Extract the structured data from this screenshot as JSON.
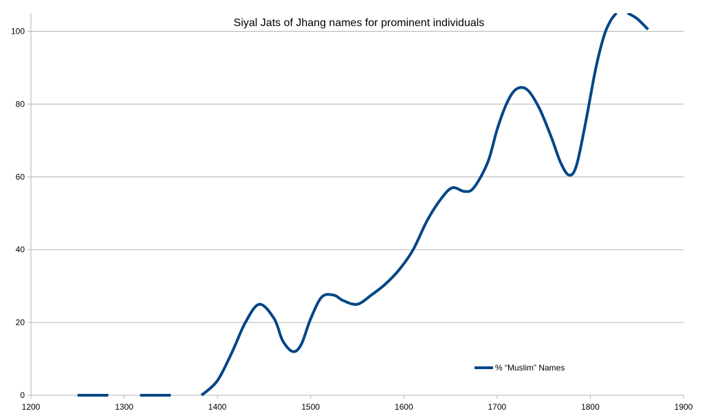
{
  "chart_data": {
    "type": "line",
    "title": "Siyal Jats of Jhang names for prominent individuals",
    "xlabel": "",
    "ylabel": "",
    "xlim": [
      1200,
      1900
    ],
    "ylim": [
      0,
      105
    ],
    "x_ticks": [
      1200,
      1300,
      1400,
      1500,
      1600,
      1700,
      1800,
      1900
    ],
    "y_ticks": [
      0,
      20,
      40,
      60,
      80,
      100
    ],
    "grid": "horizontal",
    "legend_position": "bottom-right",
    "series": [
      {
        "name": "% “Muslim” Names",
        "color": "#004586",
        "segments": [
          {
            "x": [
              1250,
              1283
            ],
            "y": [
              0,
              0
            ]
          },
          {
            "x": [
              1317,
              1350
            ],
            "y": [
              0,
              0
            ]
          },
          {
            "x": [
              1383,
              1400,
              1416,
              1430,
              1445,
              1461,
              1470,
              1481,
              1490,
              1500,
              1512,
              1525,
              1535,
              1550,
              1565,
              1580,
              1595,
              1610,
              1625,
              1640,
              1652,
              1665,
              1675,
              1690,
              1700,
              1710,
              1720,
              1732,
              1745,
              1758,
              1768,
              1777,
              1785,
              1795,
              1806,
              1815,
              1822,
              1828
            ],
            "y": [
              0,
              4,
              12,
              20,
              25,
              21,
              15,
              12,
              14,
              21,
              27,
              27.5,
              26,
              25,
              27.5,
              30.5,
              34.5,
              40,
              48,
              54,
              57,
              56,
              57,
              64,
              73,
              80,
              84,
              84,
              79,
              71,
              64,
              60.5,
              63,
              75,
              90,
              99,
              103,
              105
            ]
          },
          {
            "x": [
              1840,
              1850,
              1862
            ],
            "y": [
              105,
              103.5,
              100.5
            ]
          }
        ]
      }
    ]
  }
}
